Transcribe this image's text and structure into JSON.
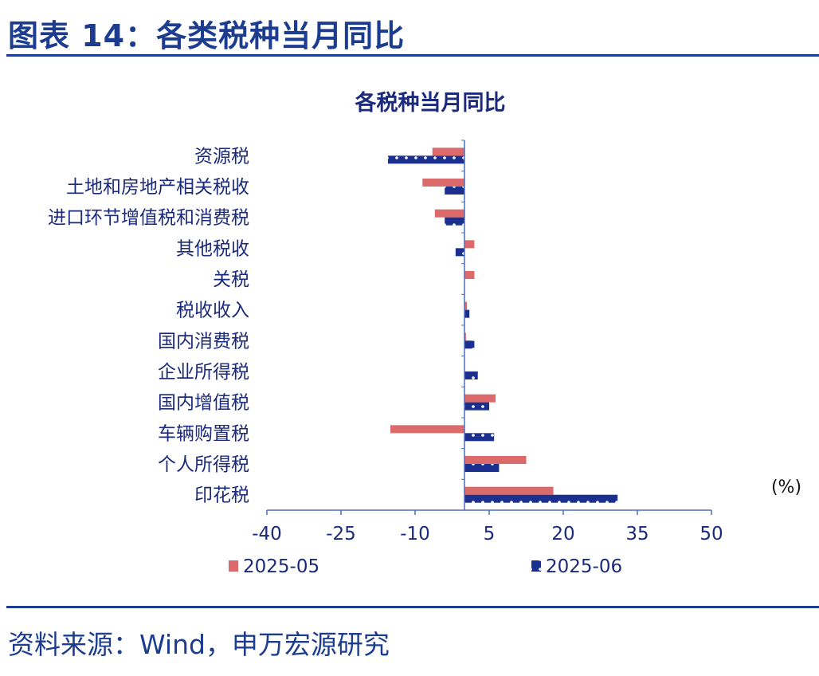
{
  "figure_title": "图表 14：各类税种当月同比",
  "source_note": "资料来源：Wind，申万宏源研究",
  "colors": {
    "title": "#1b3c8f",
    "series_a": "#dc6a6a",
    "series_b": "#1b2f8f",
    "axis": "#4a6fc0"
  },
  "chart_data": {
    "type": "bar",
    "orientation": "horizontal",
    "title": "各税种当月同比",
    "unit": "(%)",
    "categories": [
      "资源税",
      "土地和房地产相关税收",
      "进口环节增值税和消费税",
      "其他税收",
      "关税",
      "税收收入",
      "国内消费税",
      "企业所得税",
      "国内增值税",
      "车辆购置税",
      "个人所得税",
      "印花税"
    ],
    "series": [
      {
        "name": "2025-05",
        "values": [
          -6.5,
          -8.5,
          -6.0,
          2.0,
          2.0,
          0.5,
          0.3,
          0.0,
          6.3,
          -15.0,
          12.5,
          18.0
        ]
      },
      {
        "name": "2025-06",
        "values": [
          -15.5,
          -4.0,
          -4.0,
          -1.8,
          0.0,
          1.0,
          2.0,
          2.7,
          5.0,
          6.0,
          7.0,
          31.0
        ]
      }
    ],
    "xlim": [
      -40,
      50
    ],
    "xticks": [
      -40,
      -25,
      -10,
      5,
      20,
      35,
      50
    ],
    "grid": false,
    "legend_position": "bottom"
  }
}
